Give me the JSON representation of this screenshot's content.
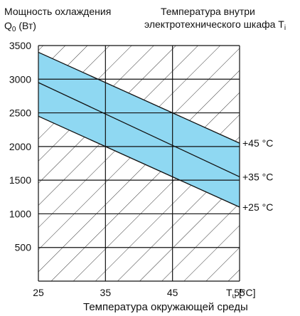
{
  "chart_data": {
    "type": "area",
    "title": "",
    "ylabel_line1": "Мощность охлаждения",
    "ylabel_q": "Q",
    "ylabel_sub": "0",
    "ylabel_unit": " (Вт)",
    "secondary_line1": "Температура внутри",
    "secondary_line2": "электротехнического шкафа T",
    "secondary_sub": "i",
    "xlabel": "Температура окружающей среды",
    "x_unit_t": "T",
    "x_unit_sub": "u",
    "x_unit_rest": " [°C]",
    "xlim": [
      25,
      55
    ],
    "ylim": [
      0,
      3500
    ],
    "xticks": [
      "25",
      "35",
      "45",
      "55"
    ],
    "yticks": [
      "500",
      "1000",
      "1500",
      "2000",
      "2500",
      "3000",
      "3500"
    ],
    "grid": true,
    "band_color": "#8fd8f2",
    "series": [
      {
        "name": "+25 °C",
        "x": [
          25,
          55
        ],
        "y": [
          2450,
          1100
        ]
      },
      {
        "name": "+35 °C",
        "x": [
          25,
          55
        ],
        "y": [
          2950,
          1550
        ]
      },
      {
        "name": "+45 °C",
        "x": [
          25,
          55
        ],
        "y": [
          3400,
          2050
        ]
      }
    ]
  }
}
